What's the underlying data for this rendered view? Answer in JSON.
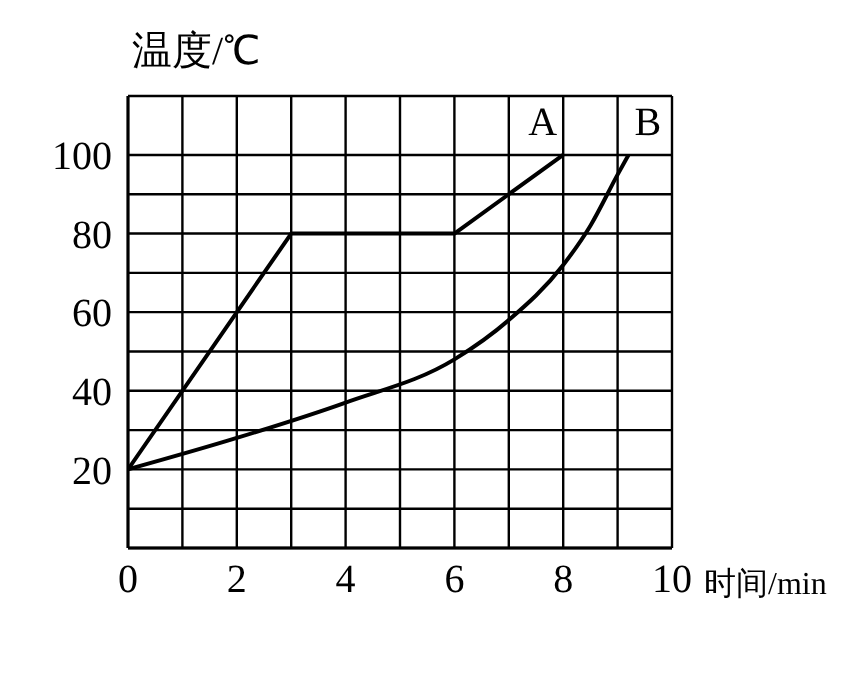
{
  "chart_data": {
    "type": "line",
    "xlabel": "时间/min",
    "ylabel": "温度/℃",
    "xlim": [
      0,
      10
    ],
    "ylim": [
      0,
      115
    ],
    "xticks": [
      0,
      {
        "value": 1,
        "label": null
      },
      2,
      {
        "value": 3,
        "label": null
      },
      4,
      {
        "value": 5,
        "label": null
      },
      6,
      {
        "value": 7,
        "label": null
      },
      8,
      {
        "value": 9,
        "label": null
      },
      10
    ],
    "yticks": [
      {
        "value": 10,
        "label": null
      },
      20,
      {
        "value": 30,
        "label": null
      },
      40,
      {
        "value": 50,
        "label": null
      },
      60,
      {
        "value": 70,
        "label": null
      },
      80,
      {
        "value": 90,
        "label": null
      },
      100
    ],
    "grid": true,
    "marker": "none",
    "line_style": "solid",
    "series": [
      {
        "name": "A",
        "color": "#000000",
        "x": [
          0,
          3,
          6,
          8
        ],
        "values": [
          20,
          80,
          80,
          100
        ]
      },
      {
        "name": "B",
        "color": "#000000",
        "x": [
          0,
          2,
          4,
          6,
          7,
          8,
          8.5,
          9,
          9.2
        ],
        "values": [
          20,
          28,
          37,
          48,
          58,
          72,
          82,
          95,
          100
        ]
      }
    ]
  }
}
